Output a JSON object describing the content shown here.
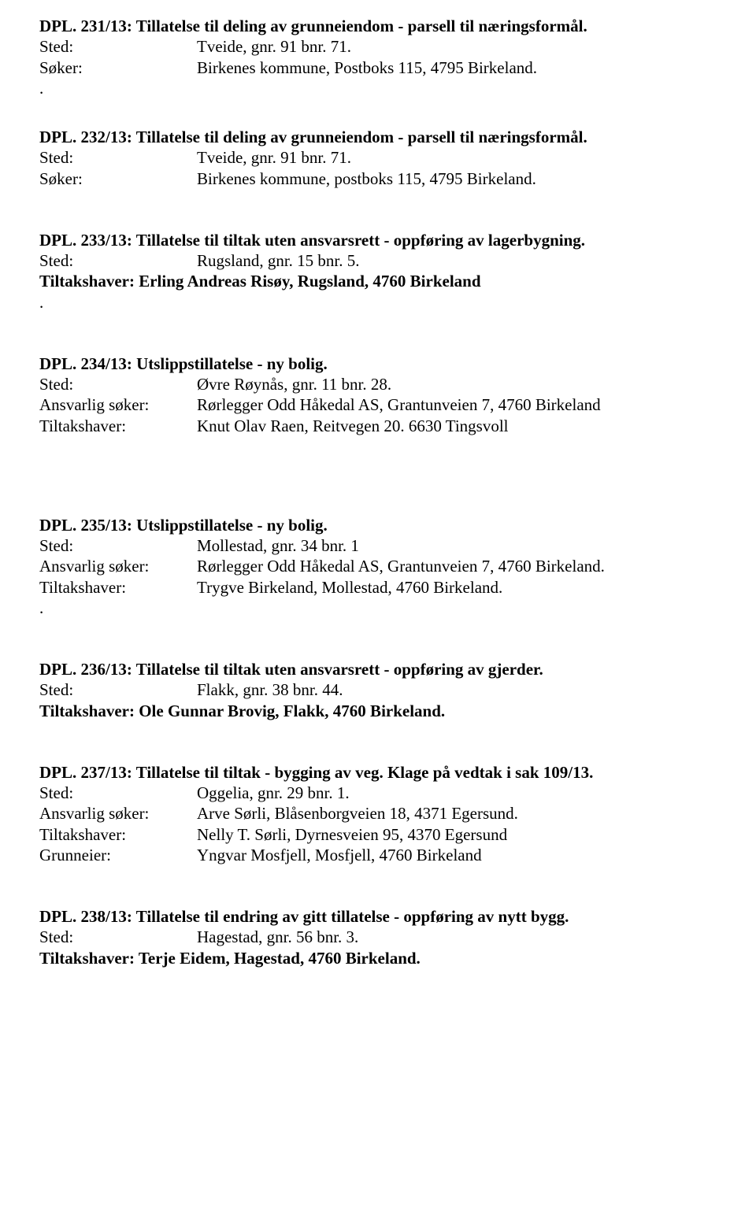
{
  "entries": [
    {
      "title": "DPL. 231/13: Tillatelse til deling av grunneiendom - parsell til næringsformål.",
      "rows": [
        {
          "label": "Sted:",
          "value": "Tveide, gnr. 91 bnr. 71."
        },
        {
          "label": "Søker:",
          "value": "Birkenes kommune, Postboks 115, 4795 Birkeland."
        }
      ],
      "trailingDot": true
    },
    {
      "title": "DPL. 232/13: Tillatelse til deling av grunneiendom - parsell til næringsformål.",
      "rows": [
        {
          "label": "Sted:",
          "value": "Tveide, gnr. 91 bnr. 71."
        },
        {
          "label": "Søker:",
          "value": "Birkenes kommune, postboks 115, 4795 Birkeland."
        }
      ]
    },
    {
      "title": "DPL. 233/13: Tillatelse til tiltak uten ansvarsrett - oppføring av lagerbygning.",
      "rows": [
        {
          "label": "Sted:",
          "value": "Rugsland, gnr. 15 bnr. 5."
        }
      ],
      "fullBold": "Tiltakshaver: Erling Andreas Risøy, Rugsland, 4760 Birkeland",
      "trailingDot": true
    },
    {
      "title": "DPL. 234/13: Utslippstillatelse - ny bolig.",
      "rows": [
        {
          "label": "Sted:",
          "value": "Øvre Røynås, gnr. 11 bnr. 28."
        },
        {
          "label": "Ansvarlig søker:",
          "value": "Rørlegger Odd Håkedal AS, Grantunveien 7, 4760 Birkeland"
        },
        {
          "label": "Tiltakshaver:",
          "value": "Knut Olav Raen, Reitvegen 20. 6630 Tingsvoll"
        }
      ]
    },
    {
      "title": "DPL. 235/13: Utslippstillatelse - ny bolig.",
      "rows": [
        {
          "label": "Sted:",
          "value": "Mollestad, gnr. 34 bnr. 1"
        },
        {
          "label": "Ansvarlig søker:",
          "value": "Rørlegger Odd Håkedal AS, Grantunveien 7, 4760 Birkeland."
        },
        {
          "label": "Tiltakshaver:",
          "value": "Trygve Birkeland, Mollestad, 4760 Birkeland."
        }
      ],
      "trailingDot": true
    },
    {
      "title": "DPL. 236/13: Tillatelse til tiltak uten ansvarsrett - oppføring av gjerder.",
      "rows": [
        {
          "label": "Sted:",
          "value": "Flakk, gnr. 38 bnr. 44."
        }
      ],
      "fullBold": "Tiltakshaver: Ole Gunnar Brovig, Flakk, 4760 Birkeland."
    },
    {
      "title": "DPL. 237/13: Tillatelse til tiltak - bygging av veg. Klage på vedtak i sak 109/13.",
      "rows": [
        {
          "label": "Sted:",
          "value": "Oggelia, gnr. 29 bnr. 1."
        },
        {
          "label": "Ansvarlig søker:",
          "value": "Arve Sørli, Blåsenborgveien 18, 4371 Egersund."
        },
        {
          "label": "Tiltakshaver:",
          "value": "Nelly T. Sørli, Dyrnesveien 95, 4370 Egersund"
        },
        {
          "label": "Grunneier:",
          "value": "Yngvar Mosfjell, Mosfjell, 4760 Birkeland"
        }
      ]
    },
    {
      "title": "DPL. 238/13: Tillatelse til endring av gitt tillatelse - oppføring av nytt bygg.",
      "rows": [
        {
          "label": "Sted:",
          "value": "Hagestad, gnr. 56 bnr. 3."
        }
      ],
      "fullBold": "Tiltakshaver: Terje Eidem, Hagestad, 4760 Birkeland."
    }
  ]
}
